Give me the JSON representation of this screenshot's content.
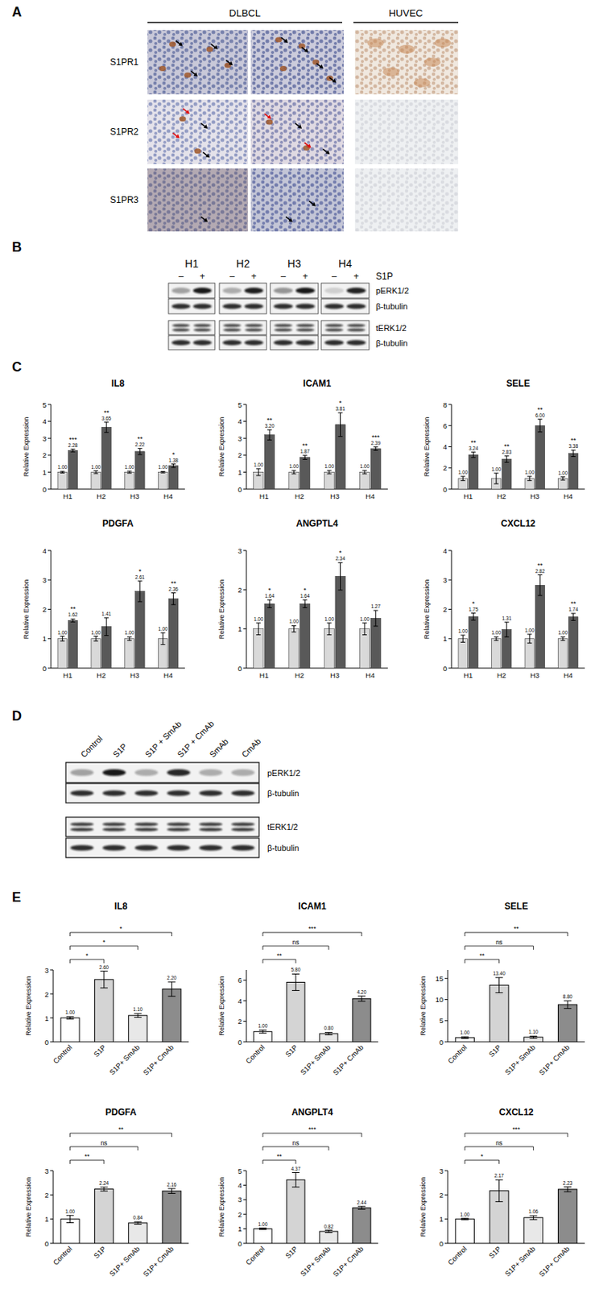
{
  "figure": {
    "panel_labels": [
      "A",
      "B",
      "C",
      "D",
      "E"
    ],
    "ihc": {
      "groups": [
        "DLBCL",
        "HUVEC"
      ],
      "rows": [
        "S1PR1",
        "S1PR2",
        "S1PR3"
      ]
    },
    "blot_b": {
      "samples": [
        "H1",
        "H2",
        "H3",
        "H4"
      ],
      "conditions": [
        "–",
        "+"
      ],
      "treatment": "S1P",
      "rows": [
        "pERK1/2",
        "β-tubulin",
        "tERK1/2",
        "β-tubulin"
      ]
    },
    "blot_d": {
      "lanes": [
        "Control",
        "S1P",
        "S1P + SmAb",
        "S1P + CmAb",
        "SmAb",
        "CmAb"
      ],
      "rows": [
        "pERK1/2",
        "β-tubulin",
        "tERK1/2",
        "β-tubulin"
      ]
    }
  },
  "chart_data": [
    {
      "type": "bar",
      "title": "IL8",
      "ylabel": "Relative Expression",
      "categories": [
        "H1",
        "H2",
        "H3",
        "H4"
      ],
      "ylim": [
        0,
        5
      ],
      "yticks": [
        0,
        1,
        2,
        3,
        4,
        5
      ],
      "data_labels": true,
      "series": [
        {
          "color": "#d9d9d9",
          "values": [
            1,
            1,
            1,
            1
          ],
          "value_labels": [
            "1.00",
            "1.00",
            "1.00",
            "1.00"
          ],
          "errors": [
            0.05,
            0.08,
            0.06,
            0.04
          ]
        },
        {
          "color": "#595959",
          "values": [
            2.28,
            3.65,
            2.22,
            1.38
          ],
          "value_labels": [
            "2.28",
            "3.65",
            "2.22",
            "1.38"
          ],
          "errors": [
            0.08,
            0.3,
            0.18,
            0.1
          ],
          "annotations": [
            "***",
            "**",
            "**",
            "*"
          ]
        }
      ]
    },
    {
      "type": "bar",
      "title": "ICAM1",
      "ylabel": "Relative Expression",
      "categories": [
        "H1",
        "H2",
        "H3",
        "H4"
      ],
      "ylim": [
        0,
        5
      ],
      "yticks": [
        0,
        1,
        2,
        3,
        4,
        5
      ],
      "data_labels": true,
      "series": [
        {
          "color": "#d9d9d9",
          "values": [
            1,
            1,
            1,
            1
          ],
          "value_labels": [
            "1.00",
            "1.00",
            "1.00",
            "1.00"
          ],
          "errors": [
            0.2,
            0.1,
            0.1,
            0.1
          ]
        },
        {
          "color": "#595959",
          "values": [
            3.2,
            1.87,
            3.81,
            2.39
          ],
          "value_labels": [
            "3.20",
            "1.87",
            "3.81",
            "2.39"
          ],
          "errors": [
            0.3,
            0.12,
            0.7,
            0.1
          ],
          "annotations": [
            "**",
            "**",
            "*",
            "***"
          ]
        }
      ]
    },
    {
      "type": "bar",
      "title": "SELE",
      "ylabel": "Relative Expression",
      "categories": [
        "H1",
        "H2",
        "H3",
        "H4"
      ],
      "ylim": [
        0,
        8
      ],
      "yticks": [
        0,
        2,
        4,
        6,
        8
      ],
      "data_labels": true,
      "series": [
        {
          "color": "#d9d9d9",
          "values": [
            1,
            1,
            1,
            1
          ],
          "value_labels": [
            "1.00",
            "1.00",
            "1.00",
            "1.00"
          ],
          "errors": [
            0.2,
            0.5,
            0.2,
            0.15
          ]
        },
        {
          "color": "#595959",
          "values": [
            3.24,
            2.83,
            6.0,
            3.38
          ],
          "value_labels": [
            "3.24",
            "2.83",
            "6.00",
            "3.38"
          ],
          "errors": [
            0.25,
            0.3,
            0.6,
            0.3
          ],
          "annotations": [
            "**",
            "**",
            "**",
            "**"
          ]
        }
      ]
    },
    {
      "type": "bar",
      "title": "PDGFA",
      "ylabel": "Relative Expression",
      "categories": [
        "H1",
        "H2",
        "H3",
        "H4"
      ],
      "ylim": [
        0,
        4
      ],
      "yticks": [
        0,
        1,
        2,
        3,
        4
      ],
      "data_labels": true,
      "series": [
        {
          "color": "#d9d9d9",
          "values": [
            1,
            1,
            1,
            1
          ],
          "value_labels": [
            "1.00",
            "1.00",
            "1.00",
            "1.00"
          ],
          "errors": [
            0.08,
            0.08,
            0.06,
            0.2
          ]
        },
        {
          "color": "#595959",
          "values": [
            1.62,
            1.41,
            2.61,
            2.36
          ],
          "value_labels": [
            "1.62",
            "1.41",
            "2.61",
            "2.36"
          ],
          "errors": [
            0.05,
            0.3,
            0.35,
            0.2
          ],
          "annotations": [
            "**",
            null,
            "*",
            "**"
          ]
        }
      ]
    },
    {
      "type": "bar",
      "title": "ANGPTL4",
      "ylabel": "Relative Expression",
      "categories": [
        "H1",
        "H2",
        "H3",
        "H4"
      ],
      "ylim": [
        0,
        3
      ],
      "yticks": [
        0,
        1,
        2,
        3
      ],
      "data_labels": true,
      "series": [
        {
          "color": "#d9d9d9",
          "values": [
            1,
            1,
            1,
            1
          ],
          "value_labels": [
            "1.00",
            "1.00",
            "1.00",
            "1.00"
          ],
          "errors": [
            0.15,
            0.08,
            0.15,
            0.15
          ]
        },
        {
          "color": "#595959",
          "values": [
            1.64,
            1.64,
            2.34,
            1.27
          ],
          "value_labels": [
            "1.64",
            "1.64",
            "2.34",
            "1.27"
          ],
          "errors": [
            0.1,
            0.1,
            0.35,
            0.2
          ],
          "annotations": [
            "*",
            "*",
            "*",
            null
          ]
        }
      ]
    },
    {
      "type": "bar",
      "title": "CXCL12",
      "ylabel": "Relative Expression",
      "categories": [
        "H1",
        "H2",
        "H3",
        "H4"
      ],
      "ylim": [
        0,
        4
      ],
      "yticks": [
        0,
        1,
        2,
        3,
        4
      ],
      "data_labels": true,
      "series": [
        {
          "color": "#d9d9d9",
          "values": [
            1,
            1,
            1,
            1
          ],
          "value_labels": [
            "1.00",
            "1.00",
            "1.00",
            "1.00"
          ],
          "errors": [
            0.12,
            0.06,
            0.15,
            0.06
          ]
        },
        {
          "color": "#595959",
          "values": [
            1.75,
            1.31,
            2.82,
            1.74
          ],
          "value_labels": [
            "1.75",
            "1.31",
            "2.82",
            "1.74"
          ],
          "errors": [
            0.12,
            0.25,
            0.35,
            0.12
          ],
          "annotations": [
            "*",
            null,
            "**",
            "**"
          ]
        }
      ]
    },
    {
      "type": "bar",
      "title": "IL8",
      "ylabel": "Relative Expression",
      "categories": [
        "Control",
        "S1P",
        "S1P+ SmAb",
        "S1P+ CmAb"
      ],
      "ylim": [
        0,
        3
      ],
      "yticks": [
        0,
        1,
        2,
        3
      ],
      "data_labels": true,
      "values": [
        1,
        2.6,
        1.1,
        2.2
      ],
      "value_labels": [
        "1.00",
        "2.60",
        "1.10",
        "2.20"
      ],
      "errors": [
        0.05,
        0.35,
        0.08,
        0.3
      ],
      "colors": [
        "#ffffff",
        "#d4d4d4",
        "#e8e8e8",
        "#8c8c8c"
      ],
      "comparisons": [
        {
          "from": "Control",
          "to": "S1P",
          "label": "*"
        },
        {
          "from": "Control",
          "to": "S1P+ SmAb",
          "label": "*"
        },
        {
          "from": "Control",
          "to": "S1P+ CmAb",
          "label": "*"
        }
      ]
    },
    {
      "type": "bar",
      "title": "ICAM1",
      "ylabel": "Relative Expression",
      "categories": [
        "Control",
        "S1P",
        "S1P+ SmAb",
        "S1P+ CmAb"
      ],
      "ylim": [
        0,
        7
      ],
      "yticks": [
        0,
        2,
        4,
        6
      ],
      "data_labels": true,
      "values": [
        1,
        5.8,
        0.8,
        4.2
      ],
      "value_labels": [
        "1.00",
        "5.80",
        "0.80",
        "4.20"
      ],
      "errors": [
        0.15,
        0.8,
        0.12,
        0.25
      ],
      "colors": [
        "#ffffff",
        "#d4d4d4",
        "#e8e8e8",
        "#8c8c8c"
      ],
      "comparisons": [
        {
          "from": "Control",
          "to": "S1P",
          "label": "**"
        },
        {
          "from": "Control",
          "to": "S1P+ SmAb",
          "label": "ns"
        },
        {
          "from": "Control",
          "to": "S1P+ CmAb",
          "label": "***"
        }
      ]
    },
    {
      "type": "bar",
      "title": "SELE",
      "ylabel": "Relative Expression",
      "categories": [
        "Control",
        "S1P",
        "S1P+ SmAb",
        "S1P+ CmAb"
      ],
      "ylim": [
        0,
        17
      ],
      "yticks": [
        0,
        5,
        10,
        15
      ],
      "data_labels": true,
      "values": [
        1,
        13.4,
        1.1,
        8.8
      ],
      "value_labels": [
        "1.00",
        "13.40",
        "1.10",
        "8.80"
      ],
      "errors": [
        0.2,
        1.8,
        0.25,
        0.9
      ],
      "colors": [
        "#ffffff",
        "#d4d4d4",
        "#e8e8e8",
        "#8c8c8c"
      ],
      "comparisons": [
        {
          "from": "Control",
          "to": "S1P",
          "label": "**"
        },
        {
          "from": "Control",
          "to": "S1P+ SmAb",
          "label": "ns"
        },
        {
          "from": "Control",
          "to": "S1P+ CmAb",
          "label": "**"
        }
      ]
    },
    {
      "type": "bar",
      "title": "PDGFA",
      "ylabel": "Relative Expression",
      "categories": [
        "Control",
        "S1P",
        "S1P+ SmAb",
        "S1P+ CmAb"
      ],
      "ylim": [
        0,
        3
      ],
      "yticks": [
        0,
        1,
        2,
        3
      ],
      "data_labels": true,
      "values": [
        1,
        2.24,
        0.84,
        2.16
      ],
      "value_labels": [
        "1.00",
        "2.24",
        "0.84",
        "2.16"
      ],
      "errors": [
        0.15,
        0.08,
        0.05,
        0.1
      ],
      "colors": [
        "#ffffff",
        "#d4d4d4",
        "#e8e8e8",
        "#8c8c8c"
      ],
      "comparisons": [
        {
          "from": "Control",
          "to": "S1P",
          "label": "**"
        },
        {
          "from": "Control",
          "to": "S1P+ SmAb",
          "label": "ns"
        },
        {
          "from": "Control",
          "to": "S1P+ CmAb",
          "label": "**"
        }
      ]
    },
    {
      "type": "bar",
      "title": "ANGPLT4",
      "ylabel": "Relative Expression",
      "categories": [
        "Control",
        "S1P",
        "S1P+ SmAb",
        "S1P+ CmAb"
      ],
      "ylim": [
        0,
        5
      ],
      "yticks": [
        0,
        1,
        2,
        3,
        4,
        5
      ],
      "data_labels": true,
      "values": [
        1,
        4.37,
        0.82,
        2.44
      ],
      "value_labels": [
        "1.00",
        "4.37",
        "0.82",
        "2.44"
      ],
      "errors": [
        0.05,
        0.5,
        0.08,
        0.1
      ],
      "colors": [
        "#ffffff",
        "#d4d4d4",
        "#e8e8e8",
        "#8c8c8c"
      ],
      "comparisons": [
        {
          "from": "Control",
          "to": "S1P",
          "label": "**"
        },
        {
          "from": "Control",
          "to": "S1P+ SmAb",
          "label": "ns"
        },
        {
          "from": "Control",
          "to": "S1P+ CmAb",
          "label": "***"
        }
      ]
    },
    {
      "type": "bar",
      "title": "CXCL12",
      "ylabel": "Relative Expression",
      "categories": [
        "Control",
        "S1P",
        "S1P+ SmAb",
        "S1P+ CmAb"
      ],
      "ylim": [
        0,
        3
      ],
      "yticks": [
        0,
        1,
        2,
        3
      ],
      "data_labels": true,
      "values": [
        1,
        2.17,
        1.06,
        2.23
      ],
      "value_labels": [
        "1.00",
        "2.17",
        "1.06",
        "2.23"
      ],
      "errors": [
        0.03,
        0.45,
        0.08,
        0.1
      ],
      "colors": [
        "#ffffff",
        "#d4d4d4",
        "#e8e8e8",
        "#8c8c8c"
      ],
      "comparisons": [
        {
          "from": "Control",
          "to": "S1P",
          "label": "*"
        },
        {
          "from": "Control",
          "to": "S1P+ SmAb",
          "label": "ns"
        },
        {
          "from": "Control",
          "to": "S1P+ CmAb",
          "label": "***"
        }
      ]
    }
  ]
}
